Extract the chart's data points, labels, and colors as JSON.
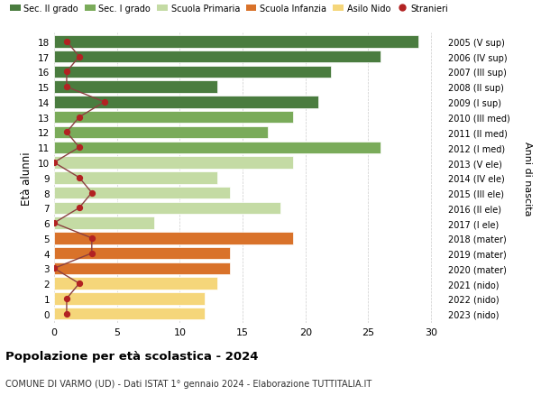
{
  "ages": [
    18,
    17,
    16,
    15,
    14,
    13,
    12,
    11,
    10,
    9,
    8,
    7,
    6,
    5,
    4,
    3,
    2,
    1,
    0
  ],
  "years_labels": [
    "2005 (V sup)",
    "2006 (IV sup)",
    "2007 (III sup)",
    "2008 (II sup)",
    "2009 (I sup)",
    "2010 (III med)",
    "2011 (II med)",
    "2012 (I med)",
    "2013 (V ele)",
    "2014 (IV ele)",
    "2015 (III ele)",
    "2016 (II ele)",
    "2017 (I ele)",
    "2018 (mater)",
    "2019 (mater)",
    "2020 (mater)",
    "2021 (nido)",
    "2022 (nido)",
    "2023 (nido)"
  ],
  "bar_values": [
    29,
    26,
    22,
    13,
    21,
    19,
    17,
    26,
    19,
    13,
    14,
    18,
    8,
    19,
    14,
    14,
    13,
    12,
    12
  ],
  "stranieri_values": [
    1,
    2,
    1,
    1,
    4,
    2,
    1,
    2,
    0,
    2,
    3,
    2,
    0,
    3,
    3,
    0,
    2,
    1,
    1
  ],
  "bar_colors": [
    "#4a7c3f",
    "#4a7c3f",
    "#4a7c3f",
    "#4a7c3f",
    "#4a7c3f",
    "#7aab5a",
    "#7aab5a",
    "#7aab5a",
    "#c4dba4",
    "#c4dba4",
    "#c4dba4",
    "#c4dba4",
    "#c4dba4",
    "#d9722a",
    "#d9722a",
    "#d9722a",
    "#f5d67a",
    "#f5d67a",
    "#f5d67a"
  ],
  "legend_labels": [
    "Sec. II grado",
    "Sec. I grado",
    "Scuola Primaria",
    "Scuola Infanzia",
    "Asilo Nido",
    "Stranieri"
  ],
  "legend_colors": [
    "#4a7c3f",
    "#7aab5a",
    "#c4dba4",
    "#d9722a",
    "#f5d67a",
    "#b22222"
  ],
  "title": "Popolazione per età scolastica - 2024",
  "subtitle": "COMUNE DI VARMO (UD) - Dati ISTAT 1° gennaio 2024 - Elaborazione TUTTITALIA.IT",
  "ylabel": "Età alunni",
  "right_ylabel": "Anni di nascita",
  "xlim": [
    0,
    31
  ],
  "xticks": [
    0,
    5,
    10,
    15,
    20,
    25,
    30
  ],
  "bar_height": 0.8,
  "stranieri_color": "#b22222",
  "line_color": "#8b4040",
  "bg_color": "#ffffff",
  "grid_color": "#cccccc"
}
